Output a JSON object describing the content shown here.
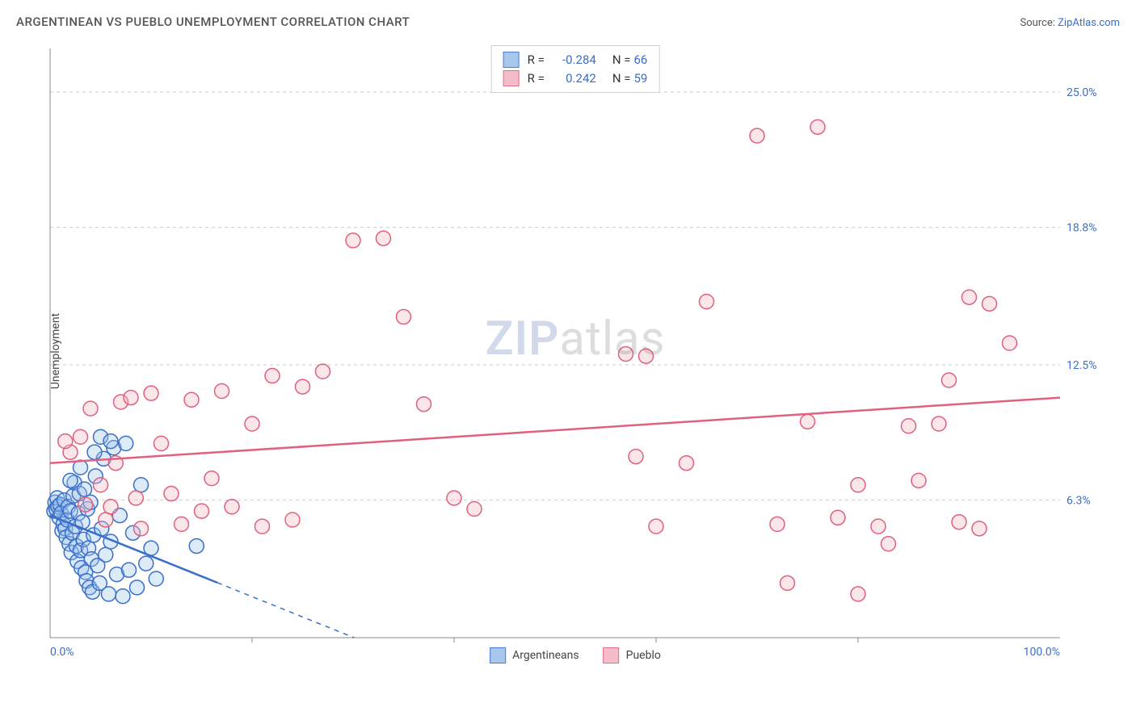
{
  "title": "ARGENTINEAN VS PUEBLO UNEMPLOYMENT CORRELATION CHART",
  "source_prefix": "Source: ",
  "source_link": "ZipAtlas.com",
  "ylabel": "Unemployment",
  "watermark_a": "ZIP",
  "watermark_b": "atlas",
  "chart": {
    "type": "scatter",
    "background_color": "#ffffff",
    "grid_color": "#cccccc",
    "axis_color": "#888888",
    "tick_label_color": "#3a6fc9",
    "xlim": [
      0,
      100
    ],
    "ylim": [
      0,
      27
    ],
    "y_ticks": [
      {
        "v": 6.3,
        "label": "6.3%"
      },
      {
        "v": 12.5,
        "label": "12.5%"
      },
      {
        "v": 18.8,
        "label": "18.8%"
      },
      {
        "v": 25.0,
        "label": "25.0%"
      }
    ],
    "x_ticks_minor": [
      20,
      40,
      60,
      80
    ],
    "x_min_label": "0.0%",
    "x_max_label": "100.0%",
    "marker_radius": 9,
    "marker_stroke_width": 1.5,
    "marker_fill_opacity": 0.35,
    "trend_line_width": 2.5,
    "trend_dash_width": 1.5,
    "series": [
      {
        "name": "Argentineans",
        "label": "Argentineans",
        "color_stroke": "#3a6fc9",
        "color_fill": "#9fc2ec",
        "R_label": "-0.284",
        "N_label": "66",
        "trend": {
          "y_at_x0": 5.6,
          "y_at_x100": -13.0
        },
        "points": [
          [
            0.4,
            5.8
          ],
          [
            0.5,
            6.2
          ],
          [
            0.6,
            5.9
          ],
          [
            0.7,
            6.4
          ],
          [
            0.8,
            6.0
          ],
          [
            0.9,
            5.5
          ],
          [
            1.0,
            6.1
          ],
          [
            1.1,
            5.7
          ],
          [
            1.2,
            4.9
          ],
          [
            1.3,
            5.2
          ],
          [
            1.4,
            6.3
          ],
          [
            1.5,
            5.0
          ],
          [
            1.6,
            4.6
          ],
          [
            1.7,
            5.4
          ],
          [
            1.8,
            6.0
          ],
          [
            1.9,
            4.3
          ],
          [
            2.0,
            5.8
          ],
          [
            2.1,
            3.9
          ],
          [
            2.2,
            4.8
          ],
          [
            2.3,
            6.5
          ],
          [
            2.4,
            7.1
          ],
          [
            2.5,
            5.1
          ],
          [
            2.6,
            4.2
          ],
          [
            2.7,
            3.5
          ],
          [
            2.8,
            5.7
          ],
          [
            2.9,
            6.6
          ],
          [
            3.0,
            4.0
          ],
          [
            3.1,
            3.2
          ],
          [
            3.2,
            5.3
          ],
          [
            3.3,
            4.5
          ],
          [
            3.4,
            6.8
          ],
          [
            3.5,
            3.0
          ],
          [
            3.6,
            2.6
          ],
          [
            3.7,
            5.9
          ],
          [
            3.8,
            4.1
          ],
          [
            3.9,
            2.3
          ],
          [
            4.0,
            6.2
          ],
          [
            4.1,
            3.6
          ],
          [
            4.2,
            2.1
          ],
          [
            4.3,
            4.7
          ],
          [
            4.5,
            7.4
          ],
          [
            4.7,
            3.3
          ],
          [
            4.9,
            2.5
          ],
          [
            5.1,
            5.0
          ],
          [
            5.3,
            8.2
          ],
          [
            5.5,
            3.8
          ],
          [
            5.8,
            2.0
          ],
          [
            6.0,
            4.4
          ],
          [
            6.3,
            8.7
          ],
          [
            6.6,
            2.9
          ],
          [
            6.9,
            5.6
          ],
          [
            7.2,
            1.9
          ],
          [
            7.5,
            8.9
          ],
          [
            7.8,
            3.1
          ],
          [
            8.2,
            4.8
          ],
          [
            8.6,
            2.3
          ],
          [
            9.0,
            7.0
          ],
          [
            9.5,
            3.4
          ],
          [
            10.0,
            4.1
          ],
          [
            10.5,
            2.7
          ],
          [
            5.0,
            9.2
          ],
          [
            6.0,
            9.0
          ],
          [
            4.4,
            8.5
          ],
          [
            3.0,
            7.8
          ],
          [
            2.0,
            7.2
          ],
          [
            14.5,
            4.2
          ]
        ]
      },
      {
        "name": "Pueblo",
        "label": "Pueblo",
        "color_stroke": "#e0607e",
        "color_fill": "#f4b6c4",
        "R_label": "0.242",
        "N_label": "59",
        "trend": {
          "y_at_x0": 8.0,
          "y_at_x100": 11.0
        },
        "points": [
          [
            2.0,
            8.5
          ],
          [
            3.0,
            9.2
          ],
          [
            3.5,
            6.1
          ],
          [
            4.0,
            10.5
          ],
          [
            5.0,
            7.0
          ],
          [
            5.5,
            5.4
          ],
          [
            6.0,
            6.0
          ],
          [
            7.0,
            10.8
          ],
          [
            8.0,
            11.0
          ],
          [
            8.5,
            6.4
          ],
          [
            9.0,
            5.0
          ],
          [
            10.0,
            11.2
          ],
          [
            11.0,
            8.9
          ],
          [
            12.0,
            6.6
          ],
          [
            14.0,
            10.9
          ],
          [
            15.0,
            5.8
          ],
          [
            16.0,
            7.3
          ],
          [
            18.0,
            6.0
          ],
          [
            20.0,
            9.8
          ],
          [
            21.0,
            5.1
          ],
          [
            22.0,
            12.0
          ],
          [
            24.0,
            5.4
          ],
          [
            25.0,
            11.5
          ],
          [
            27.0,
            12.2
          ],
          [
            30.0,
            18.2
          ],
          [
            33.0,
            18.3
          ],
          [
            35.0,
            14.7
          ],
          [
            37.0,
            10.7
          ],
          [
            40.0,
            6.4
          ],
          [
            42.0,
            5.9
          ],
          [
            57.0,
            13.0
          ],
          [
            58.0,
            8.3
          ],
          [
            59.0,
            12.9
          ],
          [
            60.0,
            5.1
          ],
          [
            63.0,
            8.0
          ],
          [
            65.0,
            15.4
          ],
          [
            70.0,
            23.0
          ],
          [
            72.0,
            5.2
          ],
          [
            73.0,
            2.5
          ],
          [
            75.0,
            9.9
          ],
          [
            76.0,
            23.4
          ],
          [
            78.0,
            5.5
          ],
          [
            80.0,
            7.0
          ],
          [
            82.0,
            5.1
          ],
          [
            83.0,
            4.3
          ],
          [
            85.0,
            9.7
          ],
          [
            86.0,
            7.2
          ],
          [
            88.0,
            9.8
          ],
          [
            89.0,
            11.8
          ],
          [
            90.0,
            5.3
          ],
          [
            91.0,
            15.6
          ],
          [
            92.0,
            5.0
          ],
          [
            93.0,
            15.3
          ],
          [
            95.0,
            13.5
          ],
          [
            80.0,
            2.0
          ],
          [
            13.0,
            5.2
          ],
          [
            17.0,
            11.3
          ],
          [
            6.5,
            8.0
          ],
          [
            1.5,
            9.0
          ]
        ]
      }
    ]
  }
}
